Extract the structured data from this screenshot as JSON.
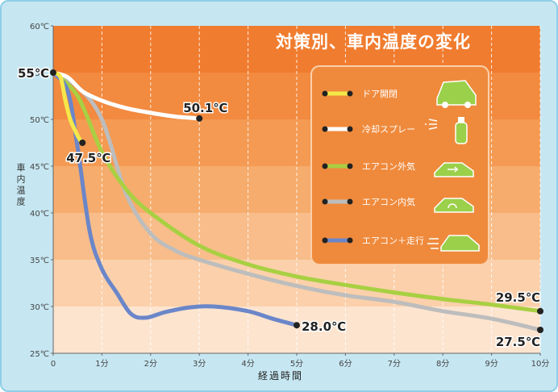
{
  "chart_data": {
    "type": "line",
    "title": "対策別、車内温度の変化",
    "xlabel": "経過時間",
    "ylabel": "車内温度",
    "xlim": [
      0,
      10
    ],
    "ylim": [
      25,
      60
    ],
    "y_ticks": [
      "25℃",
      "30℃",
      "35℃",
      "40℃",
      "45℃",
      "50℃",
      "55℃",
      "60℃"
    ],
    "x_ticks": [
      "0",
      "1分",
      "2分",
      "3分",
      "4分",
      "5分",
      "6分",
      "7分",
      "8分",
      "9分",
      "10分"
    ],
    "legend": "top-right",
    "series": [
      {
        "name": "ドア開閉",
        "color": "#f5e84a",
        "x": [
          0,
          0.15,
          0.25,
          0.35,
          0.45,
          0.55,
          0.6
        ],
        "y": [
          55,
          54.5,
          52,
          50,
          48.8,
          47.8,
          47.5
        ]
      },
      {
        "name": "冷却スプレー",
        "color": "#ffffff",
        "x": [
          0,
          0.3,
          0.6,
          1,
          1.5,
          2,
          2.5,
          3
        ],
        "y": [
          55,
          54.5,
          53,
          52,
          51.2,
          50.7,
          50.3,
          50.1
        ]
      },
      {
        "name": "エアコン外気",
        "color": "#a8d042",
        "x": [
          0,
          0.5,
          1,
          1.5,
          2,
          3,
          4,
          5,
          6,
          7,
          8,
          9,
          10
        ],
        "y": [
          55,
          52.5,
          46.5,
          42.5,
          40,
          36.5,
          34.5,
          33.2,
          32.3,
          31.5,
          30.8,
          30.2,
          29.5
        ]
      },
      {
        "name": "エアコン内気",
        "color": "#bdbdbd",
        "x": [
          0,
          0.5,
          1,
          1.5,
          2,
          2.5,
          3,
          4,
          5,
          6,
          7,
          8,
          9,
          10
        ],
        "y": [
          55,
          53.5,
          50,
          42,
          37.8,
          36,
          35,
          33.5,
          32.2,
          31.2,
          30.5,
          29.5,
          28.7,
          27.5
        ]
      },
      {
        "name": "エアコン＋走行",
        "color": "#6b86c9",
        "x": [
          0,
          0.3,
          0.5,
          0.75,
          1,
          1.3,
          1.6,
          1.9,
          2.3,
          2.8,
          3.3,
          4,
          4.5,
          5
        ],
        "y": [
          55,
          53,
          47,
          38,
          34,
          31.5,
          29.2,
          28.8,
          29.4,
          29.9,
          30,
          29.5,
          28.7,
          28.0
        ]
      }
    ],
    "annotations": [
      {
        "text": "55℃",
        "x": 0,
        "y": 55
      },
      {
        "text": "47.5℃",
        "x": 0.6,
        "y": 47.5
      },
      {
        "text": "50.1℃",
        "x": 3,
        "y": 50.1
      },
      {
        "text": "28.0℃",
        "x": 5,
        "y": 28.0
      },
      {
        "text": "29.5℃",
        "x": 10,
        "y": 29.5
      },
      {
        "text": "27.5℃",
        "x": 10,
        "y": 27.5
      }
    ]
  }
}
